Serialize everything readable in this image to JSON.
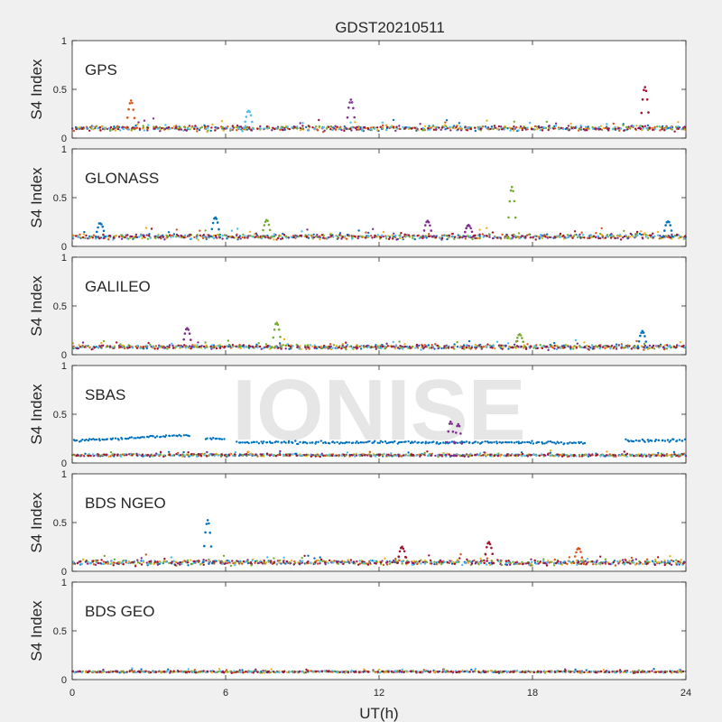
{
  "title": "GDST20210511",
  "xlabel": "UT(h)",
  "watermark": "IONISE",
  "chart_data": {
    "type": "scatter",
    "title": "GDST20210511",
    "xlabel": "UT(h)",
    "ylabel": "S4 Index",
    "xlim": [
      0,
      24
    ],
    "ylim": [
      0,
      1
    ],
    "xticks": [
      0,
      6,
      12,
      18,
      24
    ],
    "yticks": [
      0,
      0.5,
      1
    ],
    "ytick_labels": [
      "0",
      "0.5",
      "1"
    ],
    "grid": false,
    "colors": [
      "#0072bd",
      "#d95319",
      "#edb120",
      "#7e2f8e",
      "#77ac30",
      "#4dbeee",
      "#a2142f"
    ],
    "panels": [
      {
        "label": "GPS",
        "baseline": 0.1,
        "spread": 0.04,
        "peaks": [
          {
            "x": 2.3,
            "y": 0.38,
            "series": 1
          },
          {
            "x": 6.9,
            "y": 0.28,
            "series": 5
          },
          {
            "x": 10.9,
            "y": 0.39,
            "series": 3
          },
          {
            "x": 22.4,
            "y": 0.52,
            "series": 6
          }
        ]
      },
      {
        "label": "GLONASS",
        "baseline": 0.1,
        "spread": 0.04,
        "peaks": [
          {
            "x": 1.1,
            "y": 0.24,
            "series": 0
          },
          {
            "x": 5.6,
            "y": 0.3,
            "series": 0
          },
          {
            "x": 7.6,
            "y": 0.27,
            "series": 4
          },
          {
            "x": 13.9,
            "y": 0.26,
            "series": 3
          },
          {
            "x": 15.5,
            "y": 0.22,
            "series": 3
          },
          {
            "x": 17.2,
            "y": 0.61,
            "series": 4
          },
          {
            "x": 23.3,
            "y": 0.26,
            "series": 0
          }
        ]
      },
      {
        "label": "GALILEO",
        "baseline": 0.08,
        "spread": 0.035,
        "peaks": [
          {
            "x": 4.5,
            "y": 0.27,
            "series": 3
          },
          {
            "x": 8.0,
            "y": 0.33,
            "series": 4
          },
          {
            "x": 17.5,
            "y": 0.21,
            "series": 4
          },
          {
            "x": 22.3,
            "y": 0.24,
            "series": 0
          }
        ]
      },
      {
        "label": "SBAS",
        "baseline": 0.08,
        "spread": 0.02,
        "band": {
          "series": 0,
          "segments": [
            [
              0,
              4.6,
              0.23
            ],
            [
              5.2,
              6.0,
              0.25
            ],
            [
              6.4,
              20.1,
              0.21
            ],
            [
              21.6,
              24,
              0.23
            ]
          ]
        },
        "peaks": [
          {
            "x": 14.8,
            "y": 0.43,
            "series": 3
          },
          {
            "x": 15.1,
            "y": 0.4,
            "series": 3
          }
        ]
      },
      {
        "label": "BDS NGEO",
        "baseline": 0.09,
        "spread": 0.04,
        "peaks": [
          {
            "x": 5.3,
            "y": 0.52,
            "series": 0
          },
          {
            "x": 12.9,
            "y": 0.25,
            "series": 6
          },
          {
            "x": 16.3,
            "y": 0.3,
            "series": 6
          },
          {
            "x": 19.8,
            "y": 0.24,
            "series": 1
          }
        ]
      },
      {
        "label": "BDS GEO",
        "baseline": 0.08,
        "spread": 0.015,
        "peaks": []
      }
    ]
  }
}
